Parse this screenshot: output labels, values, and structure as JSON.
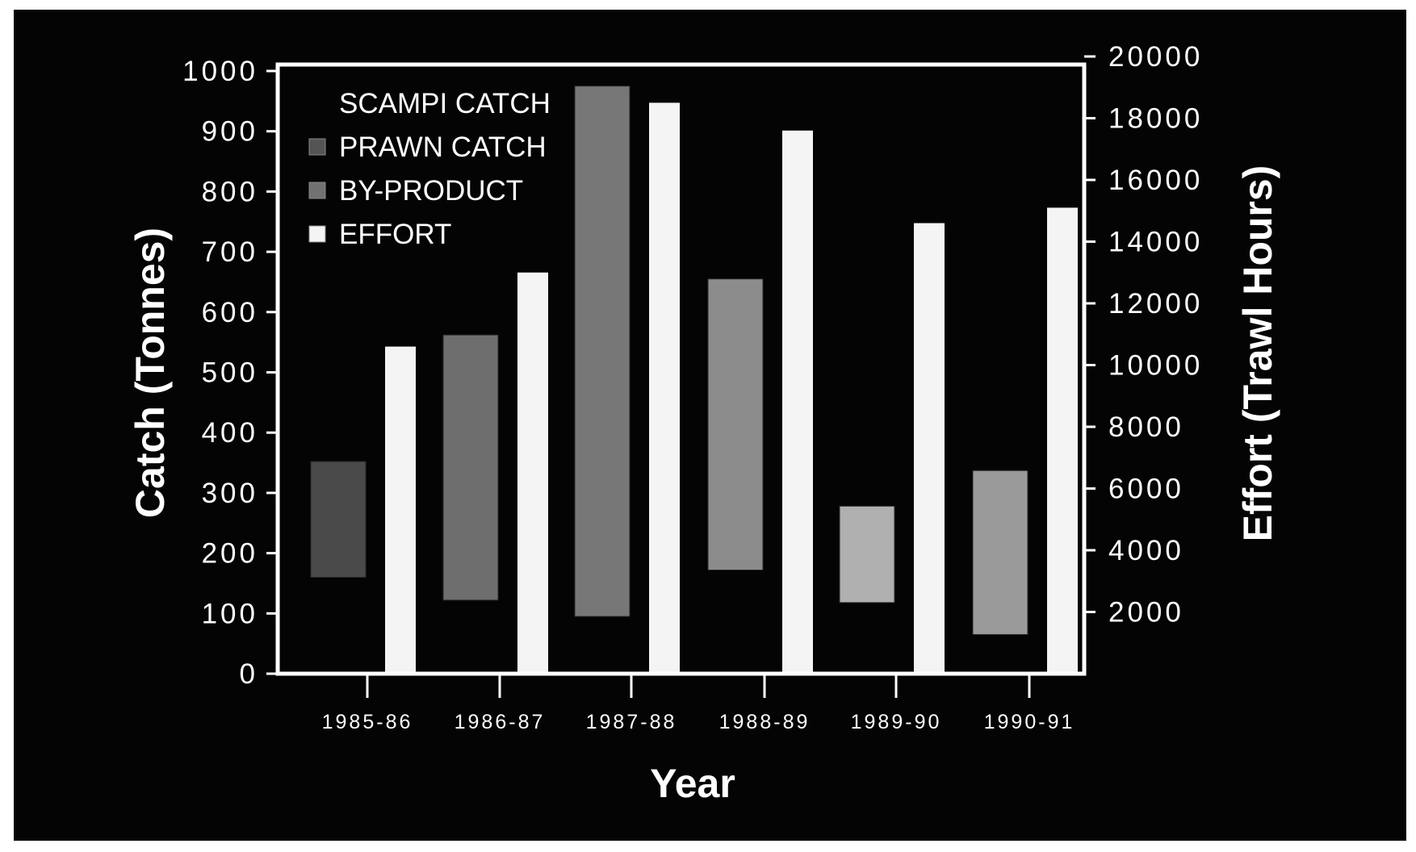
{
  "chart_data": {
    "type": "bar",
    "xlabel": "Year",
    "ylabel_left": "Catch (Tonnes)",
    "ylabel_right": "Effort (Trawl Hours)",
    "categories": [
      "1985-86",
      "1986-87",
      "1987-88",
      "1988-89",
      "1989-90",
      "1990-91"
    ],
    "left_axis": {
      "ylim": [
        0,
        1000
      ],
      "ticks": [
        "0",
        "100",
        "200",
        "300",
        "400",
        "500",
        "600",
        "700",
        "800",
        "900",
        "1000"
      ]
    },
    "right_axis": {
      "ylim": [
        0,
        20000
      ],
      "ticks": [
        "2000",
        "4000",
        "6000",
        "8000",
        "10000",
        "12000",
        "14000",
        "16000",
        "18000",
        "20000"
      ]
    },
    "legend": [
      "SCAMPI CATCH",
      "PRAWN CATCH",
      "BY-PRODUCT",
      "EFFORT"
    ],
    "catch_bars": [
      {
        "bottom": 160,
        "top": 352
      },
      {
        "bottom": 122,
        "top": 562
      },
      {
        "bottom": 95,
        "top": 975
      },
      {
        "bottom": 172,
        "top": 655
      },
      {
        "bottom": 118,
        "top": 278
      },
      {
        "bottom": 65,
        "top": 337
      }
    ],
    "effort_values": [
      10600,
      13000,
      18500,
      17600,
      14600,
      15100
    ],
    "grid": false,
    "legend_position": "top-left"
  },
  "colors": {
    "background": "#040404",
    "frame": "#ffffff",
    "scampi": "#3a3a3a",
    "prawn": "#545454",
    "by_product": "#727272",
    "effort": "#f4f4f4",
    "catch_bar_shades": [
      "#4a4a4a",
      "#6e6e6e",
      "#777777",
      "#8c8c8c",
      "#b0b0b0",
      "#9a9a9a"
    ]
  }
}
